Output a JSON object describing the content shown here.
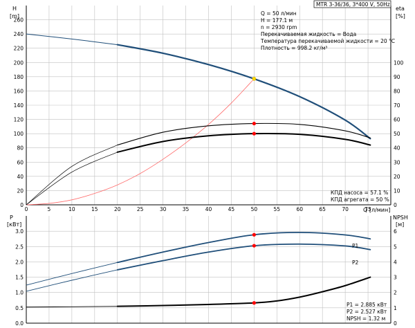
{
  "colors": {
    "head_curve": "#1f4e79",
    "system_curve": "#ff6b6b",
    "eta_curve": "#000000",
    "power_curve": "#1f4e79",
    "marker_red": "#ff0000",
    "marker_yellow": "#ffd700",
    "grid": "#c0c0c0"
  },
  "title_box": "MTR 3-36/36, 3*400 V, 50Hz",
  "info_lines": [
    "Q = 50 л/мин",
    "H = 177.1 м",
    "n = 2930 rpm",
    "Перекачиваемая жидкость = Вода",
    "Температура перекачиваемой жидкости = 20 °C",
    "Плотность = 998.2 кг/м³"
  ],
  "efficiency_lines": [
    "КПД насоса = 57.1 %",
    "КПД агрегата = 50 %"
  ],
  "power_lines": [
    "P1 = 2.885 кВт",
    "P2 = 2.527 кВт",
    "NPSH = 1.32 м"
  ],
  "chart_data": [
    {
      "type": "line",
      "title": "",
      "xlabel": "Q [л/мин]",
      "ylabel_left": "H [m]",
      "ylabel_right": "eta [%]",
      "xlim": [
        0,
        80
      ],
      "ylim_left": [
        0,
        280
      ],
      "ylim_right": [
        0,
        140
      ],
      "x_ticks": [
        "0",
        "5",
        "10",
        "15",
        "20",
        "25",
        "30",
        "35",
        "40",
        "45",
        "50",
        "55",
        "60",
        "65",
        "70",
        "75"
      ],
      "y_left_ticks": [
        "0",
        "20",
        "40",
        "60",
        "80",
        "100",
        "120",
        "140",
        "160",
        "180",
        "200",
        "220",
        "240",
        "260"
      ],
      "y_right_ticks": [
        "0",
        "10",
        "20",
        "30",
        "40",
        "50",
        "60",
        "70",
        "80",
        "90",
        "100"
      ],
      "grid": true,
      "series": [
        {
          "key": "H",
          "axis": "left",
          "style": "head",
          "x": [
            0,
            10,
            20,
            30,
            40,
            50,
            60,
            70,
            75.5
          ],
          "y": [
            240,
            233,
            225,
            213,
            197,
            177,
            152,
            119,
            93
          ]
        },
        {
          "key": "system",
          "axis": "left",
          "style": "system",
          "x": [
            0,
            5,
            10,
            15,
            20,
            25,
            30,
            35,
            40,
            45,
            50
          ],
          "y": [
            0,
            2,
            7,
            16,
            28,
            44,
            64,
            87,
            113,
            143,
            177.1
          ]
        },
        {
          "key": "eta_pump",
          "axis": "right",
          "style": "eta_thin",
          "x": [
            0,
            10,
            20,
            30,
            40,
            50,
            60,
            70,
            75.5
          ],
          "y": [
            0,
            27,
            42,
            51,
            55.5,
            57.1,
            56.5,
            52,
            47
          ]
        },
        {
          "key": "eta_unit",
          "axis": "right",
          "style": "eta_thick",
          "x": [
            0,
            10,
            20,
            30,
            40,
            50,
            60,
            70,
            75.5
          ],
          "y": [
            0,
            23,
            37,
            44.5,
            48.5,
            50,
            49.5,
            46,
            42
          ]
        }
      ],
      "markers": [
        {
          "x": 50,
          "y": 177.1,
          "axis": "left",
          "color": "yellow"
        },
        {
          "x": 50,
          "y": 57.1,
          "axis": "right",
          "color": "red"
        },
        {
          "x": 50,
          "y": 50,
          "axis": "right",
          "color": "red"
        }
      ]
    },
    {
      "type": "line",
      "title": "",
      "xlabel": "",
      "ylabel_left": "P [кВт]",
      "ylabel_right": "NPSH [м]",
      "xlim": [
        0,
        80
      ],
      "ylim_left": [
        0,
        3.5
      ],
      "ylim_right": [
        0,
        7
      ],
      "y_left_ticks": [
        "0.0",
        "0.5",
        "1.0",
        "1.5",
        "2.0",
        "2.5",
        "3.0"
      ],
      "y_right_ticks": [
        "0",
        "1",
        "2",
        "3",
        "4",
        "5",
        "6"
      ],
      "grid": true,
      "series": [
        {
          "key": "P1",
          "name": "P1",
          "axis": "left",
          "style": "power",
          "x": [
            0,
            10,
            20,
            30,
            40,
            50,
            60,
            70,
            75.5
          ],
          "y": [
            1.24,
            1.62,
            1.98,
            2.32,
            2.63,
            2.885,
            2.96,
            2.88,
            2.75
          ]
        },
        {
          "key": "P2",
          "name": "P2",
          "axis": "left",
          "style": "power",
          "x": [
            0,
            10,
            20,
            30,
            40,
            50,
            60,
            70,
            75.5
          ],
          "y": [
            1.04,
            1.4,
            1.74,
            2.04,
            2.32,
            2.527,
            2.58,
            2.52,
            2.4
          ]
        },
        {
          "key": "NPSH",
          "axis": "right",
          "style": "npsh",
          "x": [
            0,
            10,
            20,
            30,
            40,
            50,
            55,
            60,
            65,
            70,
            75.5
          ],
          "y": [
            1.05,
            1.07,
            1.1,
            1.15,
            1.22,
            1.32,
            1.45,
            1.7,
            2.05,
            2.45,
            3.0
          ]
        }
      ],
      "markers": [
        {
          "x": 50,
          "y": 2.885,
          "axis": "left",
          "color": "red"
        },
        {
          "x": 50,
          "y": 2.527,
          "axis": "left",
          "color": "red"
        },
        {
          "x": 50,
          "y": 1.32,
          "axis": "right",
          "color": "red"
        }
      ]
    }
  ]
}
